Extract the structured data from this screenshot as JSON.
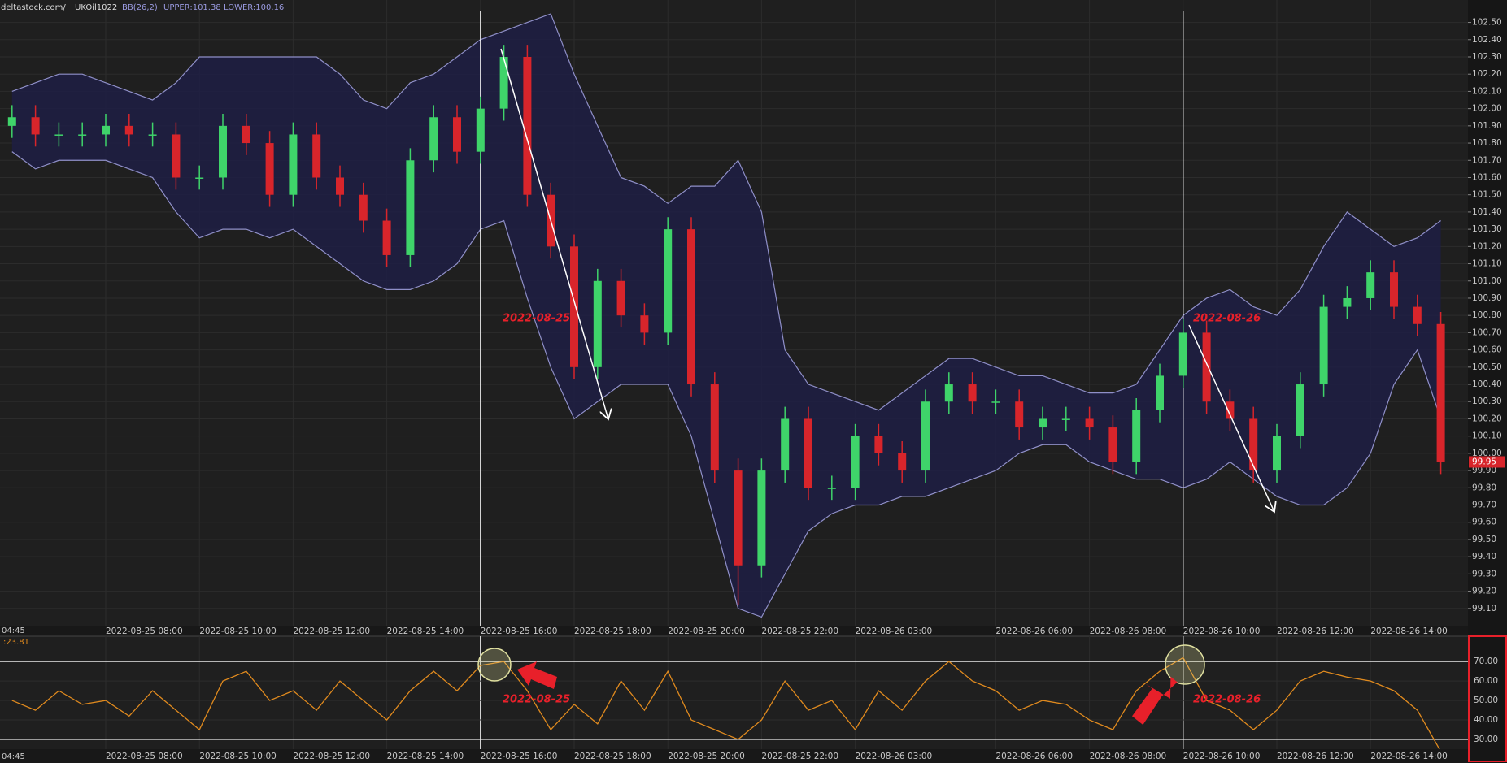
{
  "chart_data": {
    "type": "candlestick",
    "source": "deltastock.com/",
    "symbol": "UKOil1022",
    "indicator": "BB(26,2)",
    "upper_label": "UPPER:101.38",
    "lower_label": "LOWER:100.16",
    "cursor_label": "04:45",
    "annotations": [
      "2022-08-25",
      "2022-08-26"
    ],
    "categories": [
      null,
      null,
      null,
      null,
      "2022-08-25 08:00",
      null,
      null,
      null,
      "2022-08-25 10:00",
      null,
      null,
      null,
      "2022-08-25 12:00",
      null,
      null,
      null,
      "2022-08-25 14:00",
      null,
      null,
      null,
      "2022-08-25 16:00",
      null,
      null,
      null,
      "2022-08-25 18:00",
      null,
      null,
      null,
      "2022-08-25 20:00",
      null,
      null,
      null,
      "2022-08-25 22:00",
      null,
      null,
      null,
      "2022-08-26 03:00",
      null,
      null,
      null,
      null,
      null,
      "2022-08-26 06:00",
      null,
      null,
      null,
      "2022-08-26 08:00",
      null,
      null,
      null,
      "2022-08-26 10:00",
      null,
      null,
      null,
      "2022-08-26 12:00",
      null,
      null,
      null,
      "2022-08-26 14:00",
      null,
      null,
      null
    ],
    "open": [
      101.9,
      101.95,
      101.85,
      101.85,
      101.85,
      101.9,
      101.85,
      101.85,
      101.6,
      101.6,
      101.9,
      101.8,
      101.5,
      101.85,
      101.6,
      101.5,
      101.35,
      101.15,
      101.7,
      101.95,
      101.75,
      102.0,
      102.3,
      101.5,
      101.2,
      100.5,
      101.0,
      100.8,
      100.7,
      101.3,
      100.4,
      99.9,
      99.35,
      99.9,
      100.2,
      99.8,
      99.8,
      100.1,
      100.0,
      99.9,
      100.3,
      100.4,
      100.3,
      100.3,
      100.15,
      100.2,
      100.2,
      100.15,
      99.95,
      100.25,
      100.45,
      100.7,
      100.3,
      100.2,
      99.9,
      100.1,
      100.4,
      100.85,
      100.9,
      101.05,
      100.85,
      100.75
    ],
    "high": [
      102.02,
      102.02,
      101.92,
      101.92,
      101.97,
      101.97,
      101.92,
      101.92,
      101.67,
      101.97,
      101.97,
      101.87,
      101.92,
      101.92,
      101.67,
      101.57,
      101.42,
      101.77,
      102.02,
      102.02,
      102.07,
      102.37,
      102.37,
      101.57,
      101.27,
      101.07,
      101.07,
      100.87,
      101.37,
      101.37,
      100.47,
      99.97,
      99.97,
      100.27,
      100.27,
      99.87,
      100.17,
      100.17,
      100.07,
      100.37,
      100.47,
      100.47,
      100.37,
      100.37,
      100.27,
      100.27,
      100.27,
      100.22,
      100.32,
      100.52,
      100.78,
      100.77,
      100.37,
      100.27,
      100.17,
      100.47,
      100.92,
      100.97,
      101.12,
      101.12,
      100.92,
      100.82
    ],
    "low": [
      101.83,
      101.78,
      101.78,
      101.78,
      101.78,
      101.78,
      101.78,
      101.53,
      101.53,
      101.53,
      101.73,
      101.43,
      101.43,
      101.53,
      101.43,
      101.28,
      101.08,
      101.08,
      101.63,
      101.68,
      101.68,
      101.93,
      101.43,
      101.13,
      100.43,
      100.43,
      100.73,
      100.63,
      100.63,
      100.33,
      99.83,
      99.12,
      99.28,
      99.83,
      99.73,
      99.73,
      99.73,
      99.93,
      99.83,
      99.83,
      100.23,
      100.23,
      100.23,
      100.08,
      100.08,
      100.13,
      100.08,
      99.88,
      99.88,
      100.18,
      100.38,
      100.23,
      100.13,
      99.83,
      99.83,
      100.03,
      100.33,
      100.78,
      100.83,
      100.78,
      100.68,
      99.88
    ],
    "close": [
      101.95,
      101.85,
      101.85,
      101.85,
      101.9,
      101.85,
      101.85,
      101.6,
      101.6,
      101.9,
      101.8,
      101.5,
      101.85,
      101.6,
      101.5,
      101.35,
      101.15,
      101.7,
      101.95,
      101.75,
      102.0,
      102.3,
      101.5,
      101.2,
      100.5,
      101.0,
      100.8,
      100.7,
      101.3,
      100.4,
      99.9,
      99.35,
      99.9,
      100.2,
      99.8,
      99.8,
      100.1,
      100.0,
      99.9,
      100.3,
      100.4,
      100.3,
      100.3,
      100.15,
      100.2,
      100.2,
      100.15,
      99.95,
      100.25,
      100.45,
      100.7,
      100.3,
      100.2,
      99.9,
      100.1,
      100.4,
      100.85,
      100.9,
      101.05,
      100.85,
      100.75,
      99.95
    ],
    "bands": {
      "upper": [
        102.1,
        102.15,
        102.2,
        102.2,
        102.15,
        102.1,
        102.05,
        102.15,
        102.3,
        102.3,
        102.3,
        102.3,
        102.3,
        102.3,
        102.2,
        102.05,
        102.0,
        102.15,
        102.2,
        102.3,
        102.4,
        102.45,
        102.5,
        102.55,
        102.2,
        101.9,
        101.6,
        101.55,
        101.45,
        101.55,
        101.55,
        101.7,
        101.4,
        100.6,
        100.4,
        100.35,
        100.3,
        100.25,
        100.35,
        100.45,
        100.55,
        100.55,
        100.5,
        100.45,
        100.45,
        100.4,
        100.35,
        100.35,
        100.4,
        100.6,
        100.8,
        100.9,
        100.95,
        100.85,
        100.8,
        100.95,
        101.2,
        101.4,
        101.3,
        101.2,
        101.25,
        101.35
      ],
      "lower": [
        101.75,
        101.65,
        101.7,
        101.7,
        101.7,
        101.65,
        101.6,
        101.4,
        101.25,
        101.3,
        101.3,
        101.25,
        101.3,
        101.2,
        101.1,
        101.0,
        100.95,
        100.95,
        101.0,
        101.1,
        101.3,
        101.35,
        100.9,
        100.5,
        100.2,
        100.3,
        100.4,
        100.4,
        100.4,
        100.1,
        99.6,
        99.1,
        99.05,
        99.3,
        99.55,
        99.65,
        99.7,
        99.7,
        99.75,
        99.75,
        99.8,
        99.85,
        99.9,
        100.0,
        100.05,
        100.05,
        99.95,
        99.9,
        99.85,
        99.85,
        99.8,
        99.85,
        99.95,
        99.85,
        99.75,
        99.7,
        99.7,
        99.8,
        100.0,
        100.4,
        100.6,
        100.2
      ]
    },
    "colors": {
      "up": "#3fd46a",
      "down": "#d8252b",
      "band_line": "#8f8fc8",
      "band_fill": "#1e1e44"
    },
    "ylim": [
      99.0,
      102.63
    ],
    "yticks": [
      {
        "value": 99.1,
        "label": "99.10"
      },
      {
        "value": 99.2,
        "label": "99.20"
      },
      {
        "value": 99.3,
        "label": "99.30"
      },
      {
        "value": 99.4,
        "label": "99.40"
      },
      {
        "value": 99.5,
        "label": "99.50"
      },
      {
        "value": 99.6,
        "label": "99.60"
      },
      {
        "value": 99.7,
        "label": "99.70"
      },
      {
        "value": 99.8,
        "label": "99.80"
      },
      {
        "value": 99.9,
        "label": "99.90"
      },
      {
        "value": 100.0,
        "label": "100.00"
      },
      {
        "value": 100.1,
        "label": "100.10"
      },
      {
        "value": 100.2,
        "label": "100.20"
      },
      {
        "value": 100.3,
        "label": "100.30"
      },
      {
        "value": 100.4,
        "label": "100.40"
      },
      {
        "value": 100.5,
        "label": "100.50"
      },
      {
        "value": 100.6,
        "label": "100.60"
      },
      {
        "value": 100.7,
        "label": "100.70"
      },
      {
        "value": 100.8,
        "label": "100.80"
      },
      {
        "value": 100.9,
        "label": "100.90"
      },
      {
        "value": 101.0,
        "label": "101.00"
      },
      {
        "value": 101.1,
        "label": "101.10"
      },
      {
        "value": 101.2,
        "label": "101.20"
      },
      {
        "value": 101.3,
        "label": "101.30"
      },
      {
        "value": 101.4,
        "label": "101.40"
      },
      {
        "value": 101.5,
        "label": "101.50"
      },
      {
        "value": 101.6,
        "label": "101.60"
      },
      {
        "value": 101.7,
        "label": "101.70"
      },
      {
        "value": 101.8,
        "label": "101.80"
      },
      {
        "value": 101.9,
        "label": "101.90"
      },
      {
        "value": 102.0,
        "label": "102.00"
      },
      {
        "value": 102.1,
        "label": "102.10"
      },
      {
        "value": 102.2,
        "label": "102.20"
      },
      {
        "value": 102.3,
        "label": "102.30"
      },
      {
        "value": 102.4,
        "label": "102.40"
      },
      {
        "value": 102.5,
        "label": "102.50"
      }
    ],
    "grid": true,
    "last_price": {
      "value": 99.95,
      "label": "99.95"
    },
    "rsi": {
      "type": "line",
      "label": "I:23.81",
      "color": "#e08a1e",
      "values": [
        50,
        45,
        55,
        48,
        50,
        42,
        55,
        45,
        35,
        60,
        65,
        50,
        55,
        45,
        60,
        50,
        40,
        55,
        65,
        55,
        68,
        70,
        55,
        35,
        48,
        38,
        60,
        45,
        65,
        40,
        35,
        30,
        40,
        60,
        45,
        50,
        35,
        55,
        45,
        60,
        70,
        60,
        55,
        45,
        50,
        48,
        40,
        35,
        55,
        65,
        72,
        50,
        45,
        35,
        45,
        60,
        65,
        62,
        60,
        55,
        45,
        23.81
      ],
      "ylim": [
        25,
        83
      ],
      "yticks": [
        {
          "value": 30,
          "label": "30.00"
        },
        {
          "value": 40,
          "label": "40.00"
        },
        {
          "value": 50,
          "label": "50.00"
        },
        {
          "value": 60,
          "label": "60.00"
        },
        {
          "value": 70,
          "label": "70.00"
        }
      ],
      "levels": [
        70,
        30
      ]
    }
  }
}
